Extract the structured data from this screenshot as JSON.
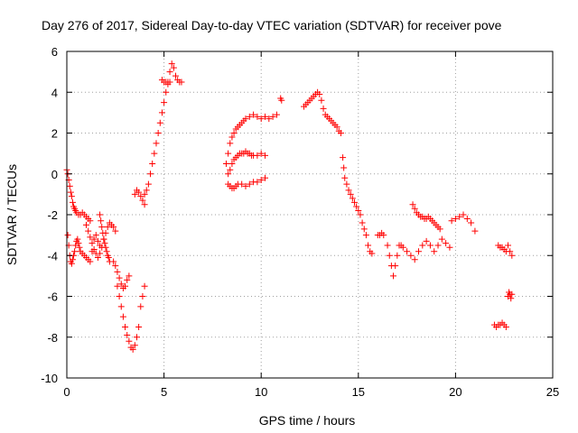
{
  "chart_data": {
    "type": "scatter",
    "title": "Day 276 of 2017, Sidereal Day-to-day VTEC variation (SDTVAR) for receiver pove",
    "xlabel": "GPS time / hours",
    "ylabel": "SDTVAR / TECUs",
    "xlim": [
      0,
      25
    ],
    "ylim": [
      -10,
      6
    ],
    "xticks": [
      "0",
      "5",
      "10",
      "15",
      "20",
      "25"
    ],
    "yticks": [
      "-10",
      "-8",
      "-6",
      "-4",
      "-2",
      "0",
      "2",
      "4",
      "6"
    ],
    "grid": true,
    "marker": "+",
    "color": "#ff0000",
    "series": [
      {
        "name": "SDTVAR",
        "x": [
          0.0,
          0.05,
          0.1,
          0.15,
          0.2,
          0.25,
          0.3,
          0.35,
          0.4,
          0.45,
          0.5,
          0.6,
          0.7,
          0.8,
          0.9,
          1.0,
          1.1,
          1.2,
          0.05,
          0.1,
          0.15,
          0.2,
          0.25,
          0.3,
          0.35,
          0.4,
          0.45,
          0.5,
          0.55,
          0.6,
          0.65,
          0.7,
          0.8,
          0.9,
          1.0,
          1.1,
          1.2,
          1.3,
          1.4,
          1.5,
          1.6,
          1.7,
          1.0,
          1.1,
          1.2,
          1.3,
          1.4,
          1.5,
          1.6,
          1.7,
          1.8,
          1.9,
          2.0,
          2.1,
          2.2,
          2.3,
          2.4,
          2.5,
          1.7,
          1.75,
          1.8,
          1.85,
          1.9,
          1.95,
          2.0,
          2.05,
          2.1,
          2.15,
          2.2,
          2.4,
          2.5,
          2.6,
          2.7,
          2.8,
          2.9,
          3.0,
          3.1,
          3.2,
          2.6,
          2.7,
          2.8,
          2.9,
          3.0,
          3.1,
          3.2,
          3.3,
          3.4,
          3.5,
          3.6,
          3.7,
          3.8,
          3.9,
          4.0,
          3.5,
          3.6,
          3.7,
          3.8,
          3.9,
          4.0,
          4.0,
          4.1,
          4.2,
          4.3,
          4.4,
          4.5,
          4.6,
          4.7,
          4.8,
          4.9,
          5.0,
          5.1,
          5.2,
          5.3,
          5.4,
          5.5,
          5.6,
          5.7,
          5.8,
          5.9,
          4.9,
          5.0,
          5.1,
          5.2,
          5.3,
          8.2,
          8.3,
          8.4,
          8.5,
          8.6,
          8.7,
          8.8,
          8.9,
          9.0,
          9.1,
          9.2,
          9.4,
          9.6,
          9.8,
          10.0,
          10.2,
          10.4,
          10.6,
          10.8,
          8.3,
          8.4,
          8.5,
          8.6,
          8.7,
          8.8,
          8.9,
          9.0,
          9.1,
          9.2,
          9.3,
          9.4,
          9.5,
          9.6,
          9.8,
          10.0,
          10.2,
          8.3,
          8.4,
          8.5,
          8.6,
          8.7,
          8.8,
          9.0,
          9.2,
          9.4,
          9.6,
          9.8,
          10.0,
          10.2,
          11.0,
          11.05,
          12.2,
          12.3,
          12.4,
          12.5,
          12.6,
          12.7,
          12.8,
          12.9,
          13.0,
          13.1,
          13.2,
          13.3,
          13.4,
          13.5,
          13.6,
          13.7,
          13.8,
          13.9,
          14.0,
          14.1,
          14.2,
          14.25,
          14.3,
          14.4,
          14.5,
          14.6,
          14.7,
          14.8,
          14.9,
          15.0,
          15.1,
          15.2,
          15.3,
          15.4,
          15.5,
          15.6,
          15.7,
          16.0,
          16.1,
          16.2,
          16.3,
          16.5,
          16.6,
          16.7,
          16.8,
          16.9,
          17.0,
          17.1,
          17.2,
          17.3,
          17.5,
          17.7,
          17.9,
          18.1,
          18.3,
          18.5,
          18.7,
          18.9,
          19.1,
          19.3,
          19.5,
          19.7,
          17.8,
          17.9,
          18.0,
          18.1,
          18.2,
          18.3,
          18.4,
          18.5,
          18.6,
          18.7,
          18.8,
          18.9,
          19.0,
          19.1,
          19.2,
          19.8,
          20.0,
          20.2,
          20.4,
          20.6,
          20.8,
          21.0,
          22.0,
          22.1,
          22.2,
          22.3,
          22.4,
          22.5,
          22.6,
          22.2,
          22.3,
          22.4,
          22.5,
          22.6,
          22.7,
          22.8,
          22.9,
          22.7,
          22.75,
          22.8,
          22.85,
          22.9
        ],
        "y": [
          0.2,
          0.0,
          -0.3,
          -0.6,
          -0.9,
          -1.1,
          -1.4,
          -1.6,
          -1.7,
          -1.8,
          -1.9,
          -2.0,
          -2.0,
          -1.9,
          -2.0,
          -2.1,
          -2.2,
          -2.3,
          -3.0,
          -3.5,
          -4.0,
          -4.3,
          -4.4,
          -4.2,
          -4.0,
          -3.8,
          -3.5,
          -3.3,
          -3.2,
          -3.4,
          -3.6,
          -3.8,
          -3.9,
          -4.0,
          -4.1,
          -4.2,
          -4.3,
          -3.8,
          -3.2,
          -3.0,
          -3.3,
          -3.5,
          -2.5,
          -2.8,
          -3.1,
          -3.4,
          -3.7,
          -3.9,
          -4.1,
          -3.9,
          -3.6,
          -3.2,
          -2.9,
          -2.6,
          -2.4,
          -2.5,
          -2.6,
          -2.8,
          -2.0,
          -2.3,
          -2.6,
          -2.9,
          -3.2,
          -3.4,
          -3.6,
          -3.8,
          -4.0,
          -4.1,
          -4.3,
          -4.3,
          -4.5,
          -4.8,
          -5.1,
          -5.4,
          -5.6,
          -5.5,
          -5.2,
          -5.0,
          -5.5,
          -6.0,
          -6.5,
          -7.0,
          -7.5,
          -7.9,
          -8.2,
          -8.5,
          -8.6,
          -8.4,
          -8.0,
          -7.5,
          -6.5,
          -6.0,
          -5.5,
          -1.0,
          -0.8,
          -0.9,
          -1.1,
          -1.3,
          -1.5,
          -1.0,
          -0.8,
          -0.5,
          0.0,
          0.5,
          1.0,
          1.5,
          2.0,
          2.5,
          3.0,
          3.5,
          4.0,
          4.5,
          5.0,
          5.4,
          5.2,
          4.8,
          4.6,
          4.5,
          4.5,
          4.6,
          4.5,
          4.5,
          4.4,
          4.5,
          0.5,
          1.0,
          1.5,
          1.8,
          2.0,
          2.2,
          2.3,
          2.4,
          2.5,
          2.6,
          2.7,
          2.8,
          2.9,
          2.8,
          2.7,
          2.8,
          2.7,
          2.8,
          2.9,
          0.0,
          0.2,
          0.5,
          0.7,
          0.8,
          0.9,
          1.0,
          1.0,
          1.0,
          1.1,
          1.0,
          1.0,
          0.9,
          0.9,
          0.9,
          1.0,
          0.9,
          -0.5,
          -0.6,
          -0.7,
          -0.7,
          -0.6,
          -0.5,
          -0.5,
          -0.6,
          -0.5,
          -0.4,
          -0.4,
          -0.3,
          -0.2,
          3.7,
          3.6,
          3.3,
          3.4,
          3.5,
          3.6,
          3.7,
          3.8,
          3.9,
          4.0,
          3.9,
          3.6,
          3.2,
          2.9,
          2.8,
          2.7,
          2.6,
          2.5,
          2.4,
          2.3,
          2.1,
          2.0,
          0.8,
          0.3,
          -0.2,
          -0.5,
          -0.8,
          -1.0,
          -1.2,
          -1.4,
          -1.6,
          -1.8,
          -2.0,
          -2.4,
          -2.7,
          -3.0,
          -3.5,
          -3.8,
          -3.9,
          -3.0,
          -3.0,
          -2.9,
          -3.0,
          -3.5,
          -4.0,
          -4.5,
          -5.0,
          -4.5,
          -4.0,
          -3.5,
          -3.5,
          -3.6,
          -3.8,
          -4.0,
          -4.2,
          -3.8,
          -3.5,
          -3.3,
          -3.5,
          -3.8,
          -3.5,
          -3.2,
          -3.4,
          -3.6,
          -1.5,
          -1.7,
          -1.9,
          -2.0,
          -2.1,
          -2.1,
          -2.2,
          -2.2,
          -2.1,
          -2.2,
          -2.3,
          -2.4,
          -2.5,
          -2.6,
          -2.7,
          -2.3,
          -2.2,
          -2.1,
          -2.0,
          -2.2,
          -2.4,
          -2.8,
          -7.4,
          -7.5,
          -7.4,
          -7.4,
          -7.3,
          -7.4,
          -7.5,
          -3.5,
          -3.6,
          -3.6,
          -3.7,
          -3.8,
          -3.5,
          -3.8,
          -4.0,
          -6.0,
          -5.8,
          -5.9,
          -6.1,
          -5.9
        ]
      }
    ]
  }
}
